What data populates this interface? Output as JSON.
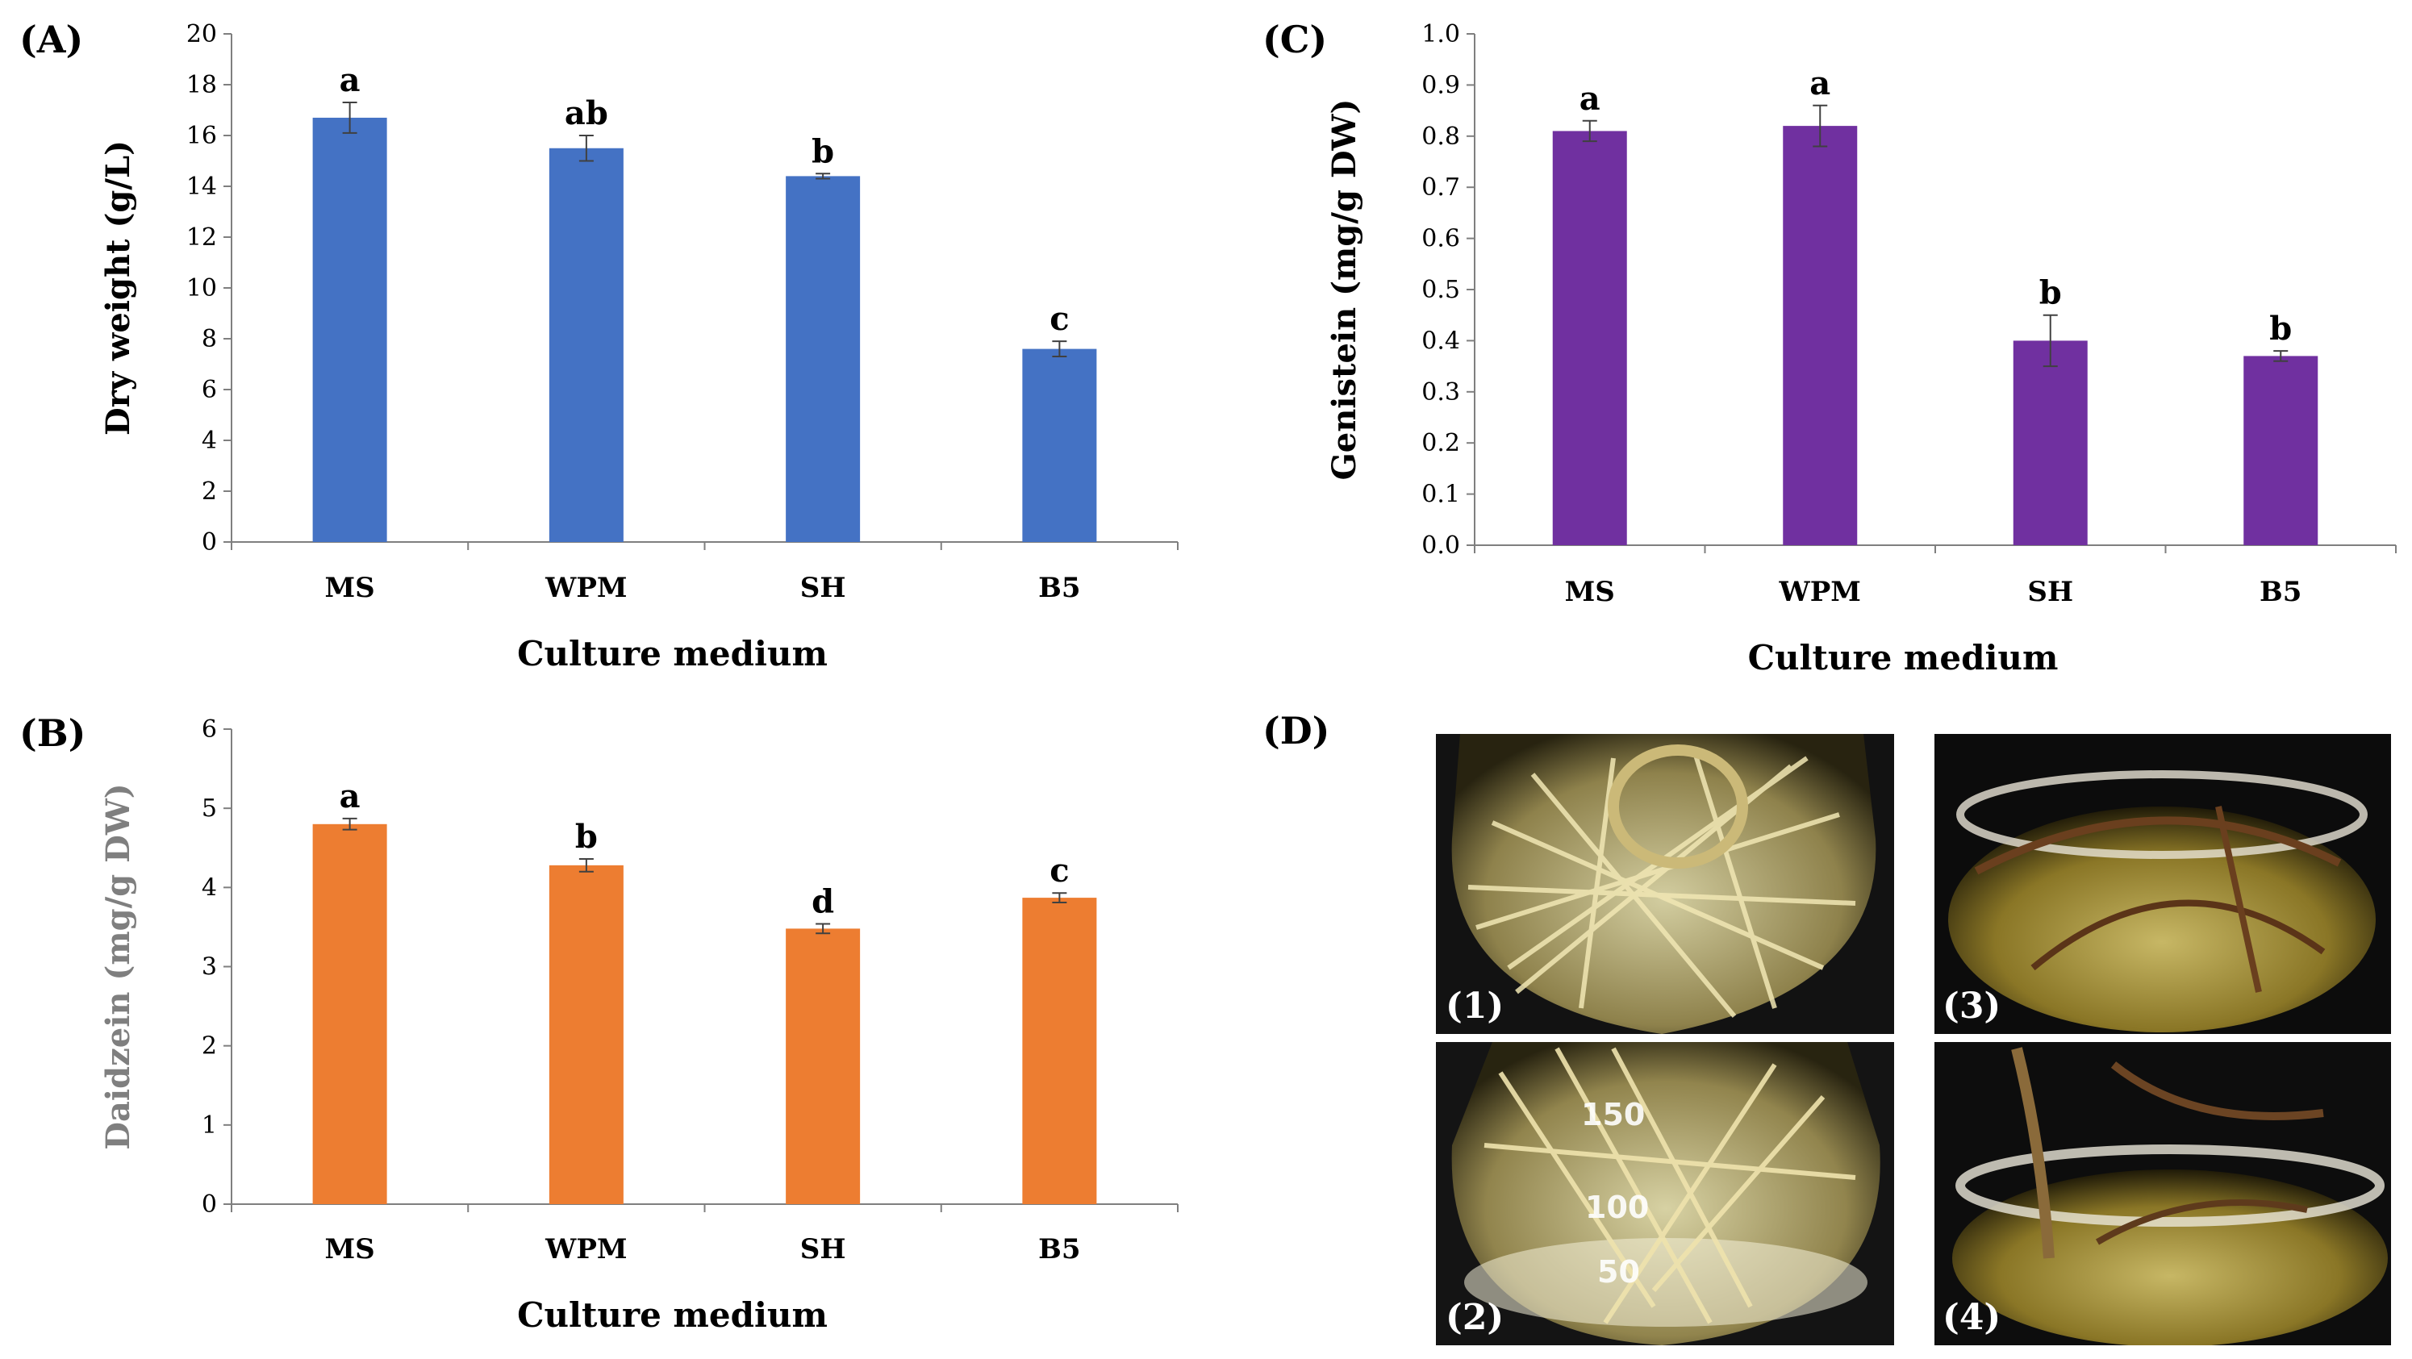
{
  "colors": {
    "A": "#4472c4",
    "B": "#ed7d31",
    "C": "#7030a0",
    "axis": "#7f7f7f",
    "text": "#000000",
    "ylabel_B": "#7f7f7f"
  },
  "chart_data": [
    {
      "panel": "(A)",
      "type": "bar",
      "categories": [
        "MS",
        "WPM",
        "SH",
        "B5"
      ],
      "values": [
        16.7,
        15.5,
        14.4,
        7.6
      ],
      "errors": [
        0.6,
        0.5,
        0.1,
        0.3
      ],
      "significance": [
        "a",
        "ab",
        "b",
        "c"
      ],
      "title": "",
      "xlabel": "Culture medium",
      "ylabel": "Dry weight (g/L)",
      "ylim": [
        0,
        20
      ],
      "ytick_labels": [
        "0",
        "2",
        "4",
        "6",
        "8",
        "10",
        "12",
        "14",
        "16",
        "18",
        "20"
      ]
    },
    {
      "panel": "(B)",
      "type": "bar",
      "categories": [
        "MS",
        "WPM",
        "SH",
        "B5"
      ],
      "values": [
        4.8,
        4.28,
        3.48,
        3.87
      ],
      "errors": [
        0.07,
        0.08,
        0.06,
        0.06
      ],
      "significance": [
        "a",
        "b",
        "d",
        "c"
      ],
      "title": "",
      "xlabel": "Culture medium",
      "ylabel": "Daidzein (mg/g DW)",
      "ylim": [
        0,
        6
      ],
      "ytick_labels": [
        "0",
        "1",
        "2",
        "3",
        "4",
        "5",
        "6"
      ]
    },
    {
      "panel": "(C)",
      "type": "bar",
      "categories": [
        "MS",
        "WPM",
        "SH",
        "B5"
      ],
      "values": [
        0.81,
        0.82,
        0.4,
        0.37
      ],
      "errors": [
        0.02,
        0.04,
        0.05,
        0.01
      ],
      "significance": [
        "a",
        "a",
        "b",
        "b"
      ],
      "title": "",
      "xlabel": "Culture medium",
      "ylabel": "Genistein (mg/g DW)",
      "ylim": [
        0,
        1.0
      ],
      "ytick_labels": [
        "0.0",
        "0.1",
        "0.2",
        "0.3",
        "0.4",
        "0.5",
        "0.6",
        "0.7",
        "0.8",
        "0.9",
        "1.0"
      ]
    }
  ],
  "photos": {
    "panel": "(D)",
    "labels": [
      "(1)",
      "(2)",
      "(3)",
      "(4)"
    ],
    "flask_marks": [
      "150",
      "100",
      "50"
    ]
  }
}
